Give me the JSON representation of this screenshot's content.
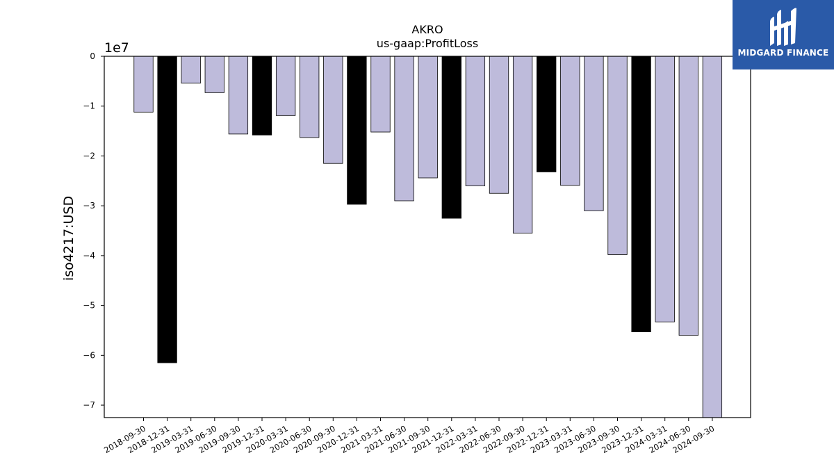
{
  "chart_data": {
    "type": "bar",
    "title": "AKRO",
    "subtitle": "us-gaap:ProfitLoss",
    "ylabel": "iso4217:USD",
    "xlabel": "",
    "offset_label": "1e7",
    "scale": 10000000,
    "ylim": [
      -72500000,
      0
    ],
    "yticks": [
      0,
      -10000000,
      -20000000,
      -30000000,
      -40000000,
      -50000000,
      -60000000,
      -70000000
    ],
    "ytick_labels": [
      "0",
      "−1",
      "−2",
      "−3",
      "−4",
      "−5",
      "−6",
      "−7"
    ],
    "grid": false,
    "legend": "none",
    "colors": {
      "quarter": "#bebbdb",
      "annual": "#000000",
      "edge": "#000000"
    },
    "categories": [
      "2018-09-30",
      "2018-12-31",
      "2019-03-31",
      "2019-06-30",
      "2019-09-30",
      "2019-12-31",
      "2020-03-31",
      "2020-06-30",
      "2020-09-30",
      "2020-12-31",
      "2021-03-31",
      "2021-06-30",
      "2021-09-30",
      "2021-12-31",
      "2022-03-31",
      "2022-06-30",
      "2022-09-30",
      "2022-12-31",
      "2023-03-31",
      "2023-06-30",
      "2023-09-30",
      "2023-12-31",
      "2024-03-31",
      "2024-06-30",
      "2024-09-30"
    ],
    "values": [
      -11200000,
      -61500000,
      -5400000,
      -7300000,
      -15600000,
      -15800000,
      -11900000,
      -16300000,
      -21500000,
      -29700000,
      -15200000,
      -29000000,
      -24400000,
      -32500000,
      -26000000,
      -27500000,
      -35500000,
      -23200000,
      -25900000,
      -31000000,
      -39800000,
      -55300000,
      -53300000,
      -56000000,
      -72500000
    ],
    "highlight": [
      false,
      true,
      false,
      false,
      false,
      true,
      false,
      false,
      false,
      true,
      false,
      false,
      false,
      true,
      false,
      false,
      false,
      true,
      false,
      false,
      false,
      true,
      false,
      false,
      false
    ]
  },
  "logo": {
    "text": "MIDGARD FINANCE",
    "icon": "midgard-logo-icon"
  }
}
